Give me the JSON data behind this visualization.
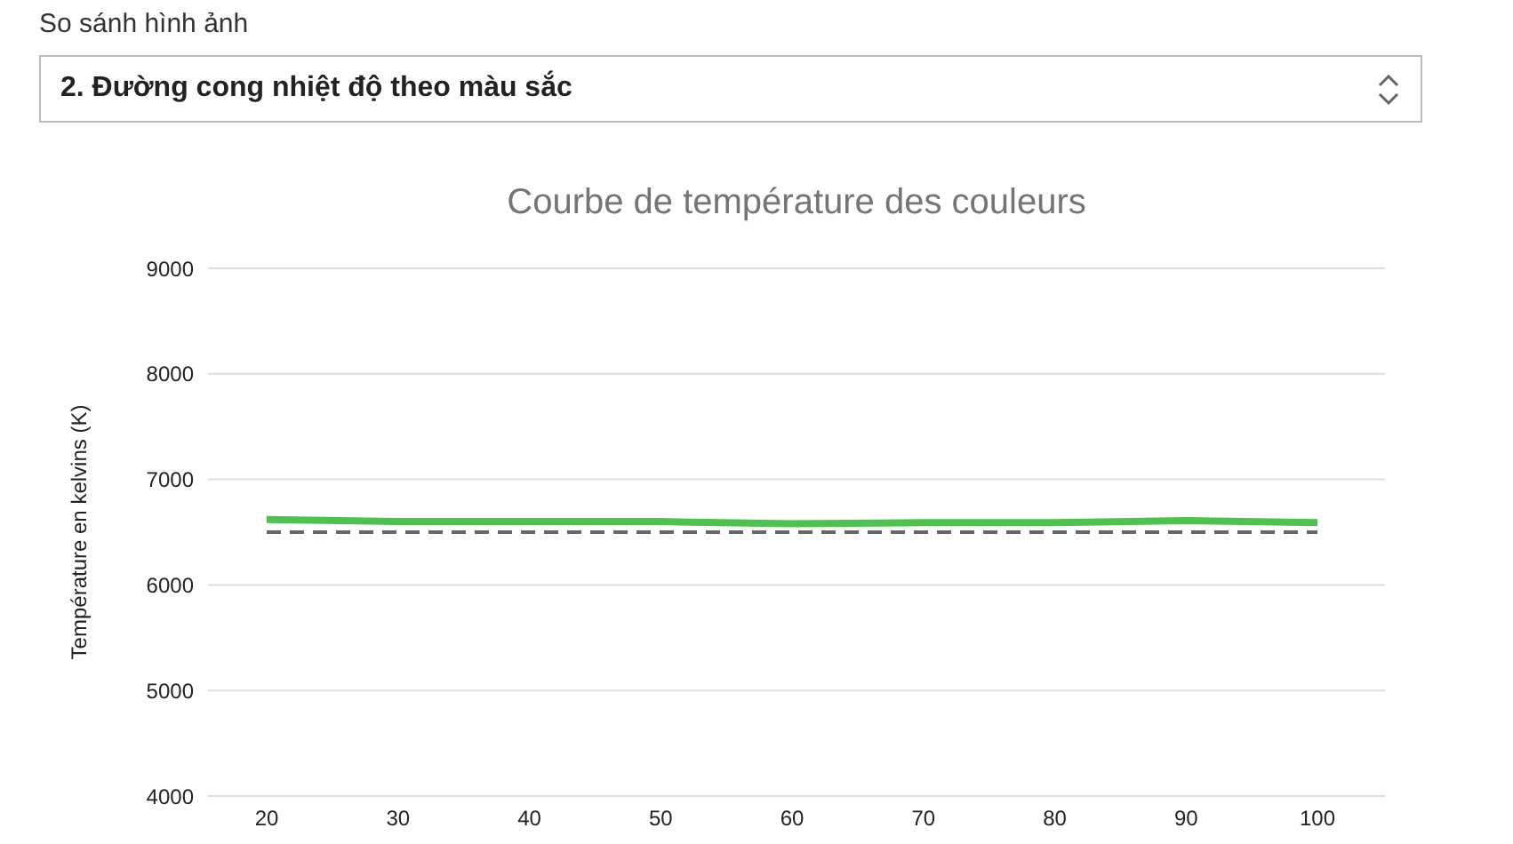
{
  "chart_data": {
    "type": "line",
    "title": "Courbe de température des couleurs",
    "ylabel": "Température en kelvins (K)",
    "annotations": [
      "So sánh hình ảnh",
      "2. Đường cong nhiệt độ theo màu sắc"
    ],
    "categories": [
      "20",
      "30",
      "40",
      "50",
      "60",
      "70",
      "80",
      "90",
      "100"
    ],
    "series": [
      {
        "color": "#4cc34c",
        "line_style": "solid",
        "values": [
          6620,
          6600,
          6600,
          6600,
          6580,
          6590,
          6590,
          6610,
          6590
        ]
      },
      {
        "color": "#666666",
        "line_style": "dashed",
        "values": [
          6500,
          6500,
          6500,
          6500,
          6500,
          6500,
          6500,
          6500,
          6500
        ]
      }
    ],
    "ylim": [
      4000,
      9000
    ],
    "yticks": [
      4000,
      5000,
      6000,
      7000,
      8000,
      9000
    ],
    "grid": "y",
    "marker": "none"
  }
}
